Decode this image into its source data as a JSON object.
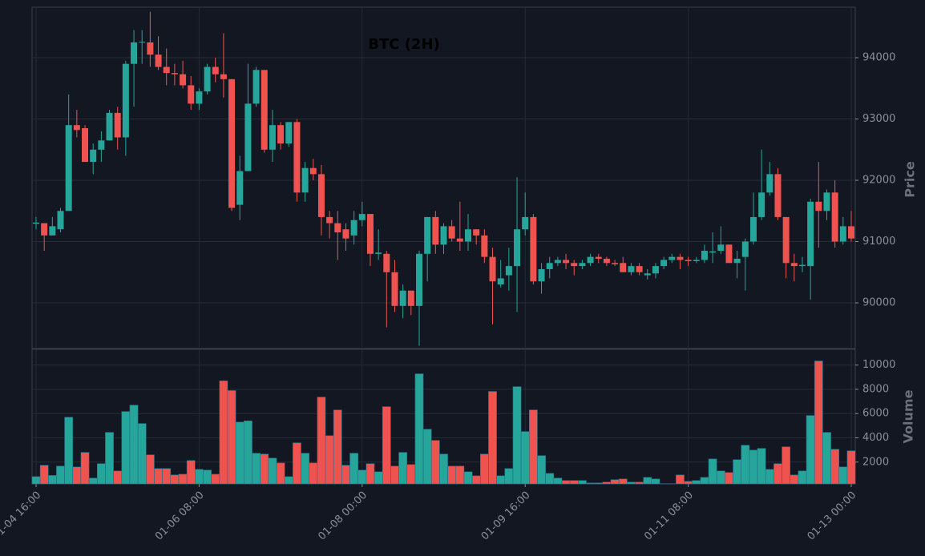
{
  "chart_data": {
    "type": "candlestick",
    "title": "BTC (2H)",
    "y_label": "Price",
    "volume_label": "Volume",
    "categories": [
      "01-04 16:00",
      null,
      null,
      null,
      null,
      null,
      null,
      null,
      null,
      null,
      null,
      null,
      null,
      null,
      null,
      null,
      null,
      null,
      null,
      null,
      "01-06 08:00",
      null,
      null,
      null,
      null,
      null,
      null,
      null,
      null,
      null,
      null,
      null,
      null,
      null,
      null,
      null,
      null,
      null,
      null,
      null,
      "01-08 00:00",
      null,
      null,
      null,
      null,
      null,
      null,
      null,
      null,
      null,
      null,
      null,
      null,
      null,
      null,
      null,
      null,
      null,
      null,
      null,
      "01-09 16:00",
      null,
      null,
      null,
      null,
      null,
      null,
      null,
      null,
      null,
      null,
      null,
      null,
      null,
      null,
      null,
      null,
      null,
      null,
      null,
      "01-11 08:00",
      null,
      null,
      null,
      null,
      null,
      null,
      null,
      null,
      null,
      null,
      null,
      null,
      null,
      null,
      null,
      null,
      null,
      null,
      null,
      "01-13 00:00"
    ],
    "open": [
      91290,
      91300,
      91100,
      91200,
      91500,
      92900,
      92850,
      92300,
      92500,
      92650,
      93100,
      92700,
      93900,
      94250,
      94250,
      94050,
      93850,
      93750,
      93730,
      93550,
      93250,
      93450,
      93850,
      93730,
      93650,
      91600,
      92150,
      93250,
      93800,
      92500,
      92900,
      92600,
      92950,
      91800,
      92200,
      92100,
      91400,
      91300,
      91200,
      91100,
      91350,
      91450,
      90800,
      90800,
      90500,
      89950,
      90200,
      89950,
      90800,
      91400,
      90950,
      91250,
      91050,
      91000,
      91200,
      91100,
      90750,
      90300,
      90450,
      90600,
      91200,
      91400,
      90350,
      90550,
      90650,
      90700,
      90650,
      90600,
      90650,
      90750,
      90720,
      90650,
      90650,
      90500,
      90600,
      90450,
      90480,
      90600,
      90700,
      90750,
      90700,
      90680,
      90700,
      90820,
      90850,
      90950,
      90650,
      90750,
      91000,
      91400,
      91800,
      92100,
      91400,
      90650,
      90600,
      90600,
      91650,
      91500,
      91800,
      91000,
      91250
    ],
    "high": [
      91400,
      91300,
      91400,
      91550,
      93400,
      93150,
      92900,
      92600,
      92800,
      93150,
      93200,
      93950,
      94450,
      94450,
      94750,
      94350,
      94150,
      93900,
      93950,
      93700,
      93500,
      93900,
      94000,
      94400,
      93650,
      92400,
      93900,
      93850,
      93800,
      93150,
      92950,
      92950,
      93000,
      92300,
      92350,
      92250,
      91500,
      91500,
      91300,
      91500,
      91650,
      91450,
      91200,
      90850,
      90700,
      90300,
      90200,
      90850,
      91400,
      91500,
      91300,
      91350,
      91650,
      91450,
      91200,
      91200,
      90900,
      90700,
      90900,
      92050,
      91800,
      91450,
      90650,
      90750,
      90750,
      90800,
      90700,
      90700,
      90800,
      90800,
      90750,
      90700,
      90750,
      90650,
      90650,
      90550,
      90650,
      90750,
      90800,
      90800,
      90750,
      90750,
      90950,
      91150,
      91250,
      90950,
      90850,
      91050,
      91800,
      92500,
      92300,
      92200,
      91400,
      90800,
      90750,
      91700,
      92300,
      91850,
      92000,
      91400,
      91500
    ],
    "low": [
      91200,
      90850,
      91100,
      91150,
      91500,
      92700,
      92300,
      92100,
      92300,
      92650,
      92500,
      92400,
      93200,
      93900,
      93850,
      93800,
      93550,
      93550,
      93500,
      93150,
      93150,
      93400,
      93600,
      93350,
      91500,
      91350,
      92150,
      93200,
      92450,
      92300,
      92500,
      92550,
      91650,
      91650,
      92000,
      91100,
      91050,
      90700,
      90850,
      90950,
      91250,
      90600,
      90700,
      89600,
      89850,
      89750,
      89800,
      89300,
      90350,
      90800,
      90800,
      91000,
      90850,
      90850,
      90950,
      90650,
      89650,
      90250,
      90200,
      89850,
      91100,
      90300,
      90150,
      90400,
      90600,
      90550,
      90450,
      90550,
      90600,
      90650,
      90600,
      90600,
      90500,
      90450,
      90450,
      90380,
      90400,
      90550,
      90650,
      90550,
      90600,
      90650,
      90650,
      90650,
      90800,
      90650,
      90400,
      90200,
      90950,
      91350,
      91750,
      91350,
      90400,
      90350,
      90500,
      90050,
      90900,
      91350,
      90900,
      90950,
      91000
    ],
    "close": [
      91310,
      91100,
      91250,
      91500,
      92900,
      92820,
      92300,
      92500,
      92650,
      93100,
      92700,
      93900,
      94250,
      94260,
      94050,
      93850,
      93750,
      93730,
      93550,
      93250,
      93450,
      93850,
      93730,
      93650,
      91550,
      92150,
      93250,
      93800,
      92500,
      92900,
      92600,
      92950,
      91800,
      92200,
      92100,
      91400,
      91300,
      91150,
      91050,
      91350,
      91450,
      90800,
      90820,
      90500,
      89950,
      90200,
      89950,
      90800,
      91400,
      90950,
      91250,
      91050,
      91000,
      91200,
      91100,
      90750,
      90350,
      90400,
      90600,
      91200,
      91400,
      90350,
      90550,
      90650,
      90700,
      90650,
      90600,
      90650,
      90750,
      90720,
      90650,
      90630,
      90500,
      90600,
      90500,
      90480,
      90600,
      90700,
      90750,
      90700,
      90680,
      90700,
      90850,
      90840,
      90950,
      90650,
      90720,
      91000,
      91400,
      91800,
      92100,
      91400,
      90650,
      90600,
      90620,
      91650,
      91500,
      91800,
      91000,
      91250,
      91050
    ],
    "volume": [
      800,
      1740,
      900,
      1670,
      5700,
      1600,
      2800,
      680,
      1870,
      4450,
      1270,
      6170,
      6700,
      5180,
      2600,
      1470,
      1470,
      940,
      1000,
      2130,
      1400,
      1340,
      1000,
      8700,
      7900,
      5300,
      5400,
      2730,
      2660,
      2330,
      1930,
      800,
      3590,
      2730,
      1930,
      7360,
      4180,
      6300,
      1740,
      2730,
      1340,
      1870,
      1200,
      6570,
      1670,
      2800,
      1800,
      9280,
      4710,
      3790,
      2660,
      1670,
      1670,
      1200,
      870,
      2660,
      7830,
      870,
      1470,
      8220,
      4520,
      6300,
      2530,
      1070,
      680,
      480,
      480,
      480,
      280,
      280,
      350,
      550,
      610,
      350,
      350,
      740,
      610,
      220,
      220,
      940,
      410,
      480,
      740,
      2260,
      1270,
      1140,
      2200,
      3390,
      2990,
      3130,
      1400,
      1870,
      3260,
      940,
      1270,
      5840,
      10340,
      4450,
      3060,
      1600,
      2930
    ],
    "up_color": "#26a69a",
    "down_color": "#ef5350",
    "ylim": [
      89255,
      94824
    ],
    "yticks": [
      90000,
      91000,
      92000,
      93000,
      94000
    ],
    "volume_ylim": [
      200,
      11300
    ],
    "volume_yticks": [
      2000,
      4000,
      6000,
      8000,
      10000
    ],
    "grid": true
  }
}
